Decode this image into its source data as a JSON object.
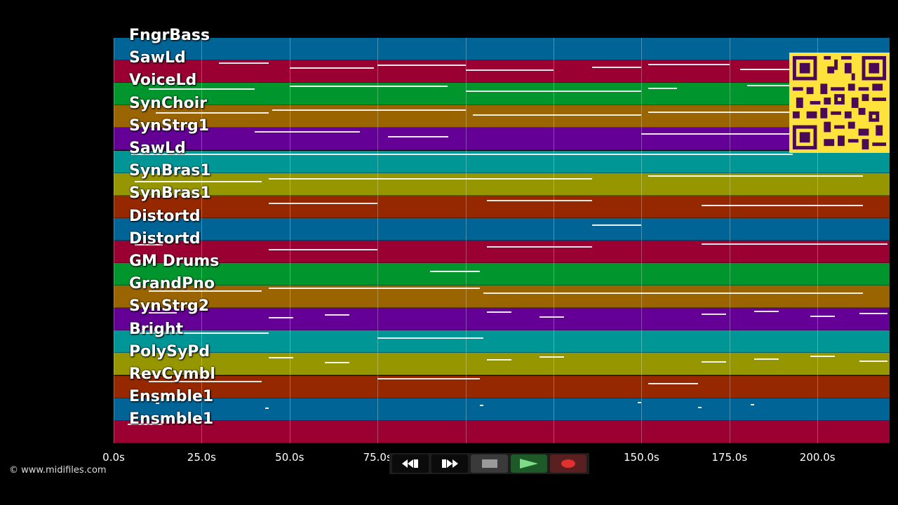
{
  "tracks": [
    {
      "name": "FngrBass",
      "color": "#006496"
    },
    {
      "name": "SawLd",
      "color": "#9a0032"
    },
    {
      "name": "VoiceLd",
      "color": "#00962d"
    },
    {
      "name": "SynChoir",
      "color": "#9a6400"
    },
    {
      "name": "SynStrg1",
      "color": "#640096"
    },
    {
      "name": "SawLd",
      "color": "#009696"
    },
    {
      "name": "SynBras1",
      "color": "#969600"
    },
    {
      "name": "SynBras1",
      "color": "#962800"
    },
    {
      "name": "Distortd",
      "color": "#006496"
    },
    {
      "name": "Distortd",
      "color": "#9a0032"
    },
    {
      "name": "GM Drums",
      "color": "#00962d"
    },
    {
      "name": "GrandPno",
      "color": "#9a6400"
    },
    {
      "name": "SynStrg2",
      "color": "#640096"
    },
    {
      "name": "Bright",
      "color": "#009696"
    },
    {
      "name": "PolySyPd",
      "color": "#969600"
    },
    {
      "name": "RevCymbl",
      "color": "#962800"
    },
    {
      "name": "Ensmble1",
      "color": "#006496"
    },
    {
      "name": "Ensmble1",
      "color": "#9a0032"
    }
  ],
  "axis": {
    "unit": "s",
    "max_seconds": 220.5,
    "ticks": [
      "0.0s",
      "25.0s",
      "50.0s",
      "75.0s",
      "100.0s",
      "125.0s",
      "150.0s",
      "175.0s",
      "200.0s"
    ]
  },
  "notes": [
    [
      1,
      30,
      44
    ],
    [
      1,
      50,
      74
    ],
    [
      1,
      75,
      100
    ],
    [
      1,
      100,
      125
    ],
    [
      1,
      136,
      150
    ],
    [
      1,
      152,
      175
    ],
    [
      1,
      178,
      193
    ],
    [
      2,
      10,
      40
    ],
    [
      2,
      50,
      95
    ],
    [
      2,
      100,
      150
    ],
    [
      2,
      152,
      160
    ],
    [
      2,
      180,
      193
    ],
    [
      3,
      12,
      44
    ],
    [
      3,
      45,
      100
    ],
    [
      3,
      102,
      150
    ],
    [
      3,
      152,
      193
    ],
    [
      4,
      40,
      70
    ],
    [
      4,
      78,
      95
    ],
    [
      4,
      150,
      193
    ],
    [
      5,
      5,
      193
    ],
    [
      6,
      6,
      42
    ],
    [
      6,
      44,
      136
    ],
    [
      6,
      152,
      213
    ],
    [
      7,
      44,
      75
    ],
    [
      7,
      106,
      136
    ],
    [
      7,
      167,
      213
    ],
    [
      8,
      136,
      150
    ],
    [
      9,
      6,
      14
    ],
    [
      9,
      44,
      75
    ],
    [
      9,
      106,
      136
    ],
    [
      9,
      167,
      220
    ],
    [
      10,
      90,
      104
    ],
    [
      11,
      10,
      42
    ],
    [
      11,
      44,
      104
    ],
    [
      11,
      105,
      213
    ],
    [
      12,
      10,
      18
    ],
    [
      12,
      44,
      51
    ],
    [
      12,
      60,
      67
    ],
    [
      12,
      106,
      113
    ],
    [
      12,
      121,
      128
    ],
    [
      12,
      167,
      174
    ],
    [
      12,
      182,
      189
    ],
    [
      12,
      198,
      205
    ],
    [
      12,
      212,
      220
    ],
    [
      13,
      5,
      44
    ],
    [
      13,
      75,
      105
    ],
    [
      14,
      44,
      51
    ],
    [
      14,
      60,
      67
    ],
    [
      14,
      106,
      113
    ],
    [
      14,
      121,
      128
    ],
    [
      14,
      167,
      174
    ],
    [
      14,
      182,
      189
    ],
    [
      14,
      198,
      205
    ],
    [
      14,
      212,
      220
    ],
    [
      15,
      10,
      42
    ],
    [
      15,
      75,
      104
    ],
    [
      15,
      152,
      166
    ],
    [
      16,
      12,
      13
    ],
    [
      16,
      43,
      44
    ],
    [
      16,
      104,
      105
    ],
    [
      16,
      149,
      150
    ],
    [
      16,
      166,
      167
    ],
    [
      16,
      181,
      182
    ],
    [
      17,
      4,
      14
    ],
    [
      18,
      136,
      150
    ]
  ],
  "watermark": "© www.midifiles.com",
  "transport": {
    "rewind_icon": "rewind-icon",
    "fastforward_icon": "fast-forward-icon",
    "stop_icon": "stop-icon",
    "play_icon": "play-icon",
    "record_icon": "record-icon"
  }
}
